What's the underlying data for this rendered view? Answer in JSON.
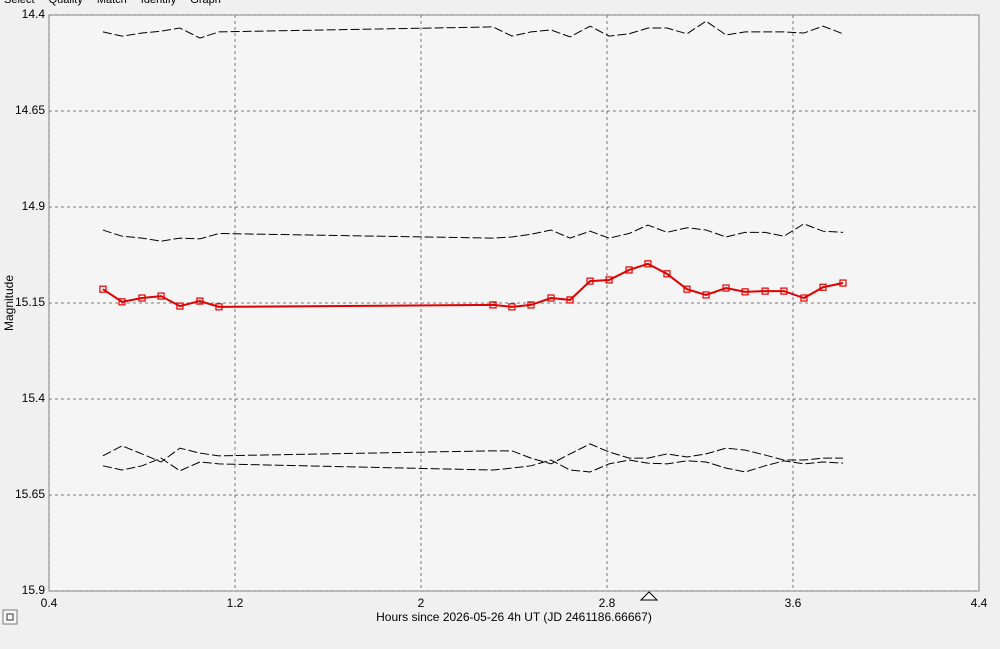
{
  "tabs": [
    "Select",
    "Quality",
    "Match",
    "Identify",
    "Graph"
  ],
  "chart_data": {
    "type": "line",
    "x_label": "Hours since 2026-05-26 4h UT (JD 2461186.66667)",
    "y_label": "Magnitude",
    "x": [
      0.632,
      0.714,
      0.8,
      0.882,
      0.963,
      1.049,
      1.131,
      2.31,
      2.391,
      2.473,
      2.559,
      2.641,
      2.727,
      2.809,
      2.895,
      2.976,
      3.058,
      3.144,
      3.226,
      3.312,
      3.394,
      3.48,
      3.561,
      3.647,
      3.729,
      3.815
    ],
    "series": [
      {
        "color": "#000000",
        "dashed": true,
        "values": [
          14.444,
          14.455,
          14.447,
          14.442,
          14.434,
          14.46,
          14.444,
          14.431,
          14.455,
          14.444,
          14.439,
          14.457,
          14.429,
          14.455,
          14.449,
          14.434,
          14.434,
          14.449,
          14.416,
          14.452,
          14.444,
          14.444,
          14.444,
          14.447,
          14.429,
          14.449
        ]
      },
      {
        "color": "#000000",
        "dashed": true,
        "values": [
          14.96,
          14.976,
          14.981,
          14.989,
          14.981,
          14.983,
          14.969,
          14.981,
          14.978,
          14.971,
          14.96,
          14.981,
          14.963,
          14.981,
          14.969,
          14.947,
          14.966,
          14.954,
          14.96,
          14.978,
          14.966,
          14.966,
          14.976,
          14.944,
          14.963,
          14.966
        ]
      },
      {
        "color": "#000000",
        "dashed": true,
        "values": [
          15.548,
          15.522,
          15.543,
          15.564,
          15.528,
          15.541,
          15.548,
          15.535,
          15.535,
          15.554,
          15.569,
          15.543,
          15.517,
          15.538,
          15.554,
          15.554,
          15.543,
          15.551,
          15.543,
          15.528,
          15.533,
          15.546,
          15.559,
          15.559,
          15.554,
          15.554
        ]
      },
      {
        "color": "#000000",
        "dashed": true,
        "values": [
          15.574,
          15.585,
          15.574,
          15.554,
          15.587,
          15.564,
          15.569,
          15.585,
          15.58,
          15.574,
          15.559,
          15.585,
          15.59,
          15.569,
          15.559,
          15.567,
          15.569,
          15.561,
          15.564,
          15.58,
          15.59,
          15.574,
          15.561,
          15.569,
          15.564,
          15.567
        ]
      },
      {
        "color": "#e00000",
        "marker": "square",
        "values": [
          15.114,
          15.147,
          15.137,
          15.132,
          15.158,
          15.145,
          15.16,
          15.155,
          15.16,
          15.155,
          15.137,
          15.142,
          15.093,
          15.09,
          15.064,
          15.048,
          15.074,
          15.114,
          15.129,
          15.111,
          15.121,
          15.119,
          15.119,
          15.137,
          15.109,
          15.098
        ]
      }
    ],
    "xlim": [
      0.4,
      4.4
    ],
    "xticks": [
      0.4,
      1.2,
      2,
      2.8,
      3.6,
      4.4
    ],
    "ylim": [
      14.4,
      15.9
    ],
    "yticks": [
      14.4,
      14.65,
      14.9,
      15.15,
      15.4,
      15.65,
      15.9
    ],
    "invert_y": true,
    "grid": true
  }
}
